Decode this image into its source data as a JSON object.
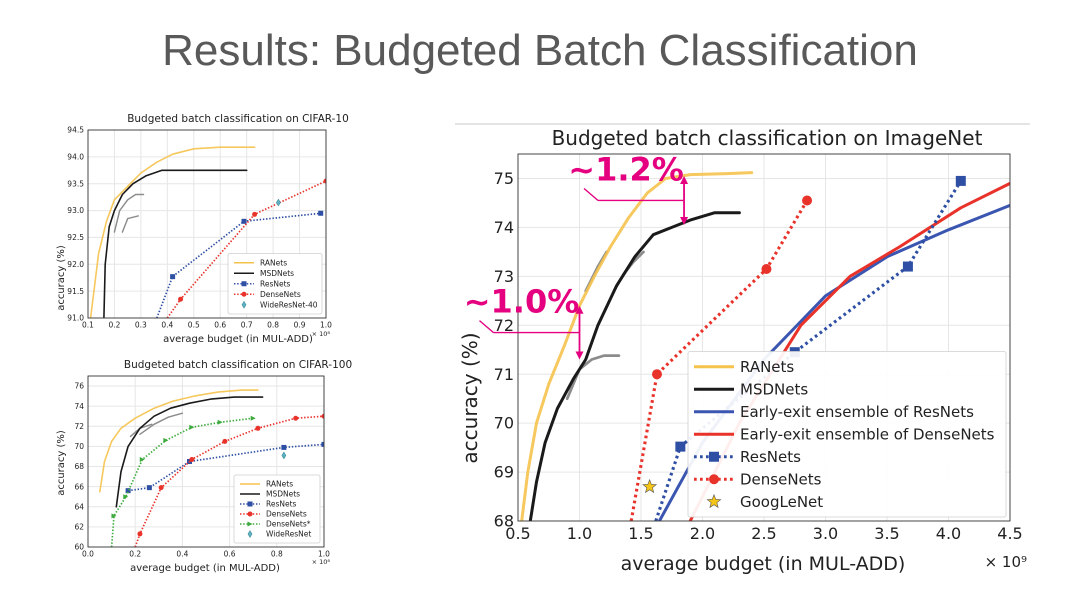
{
  "slide": {
    "title": "Results: Budgeted Batch Classification"
  },
  "chart_data": [
    {
      "id": "cifar10",
      "type": "line",
      "title": "Budgeted batch classification on CIFAR-10",
      "xlabel": "average budget (in MUL-ADD)",
      "ylabel": "accuracy (%)",
      "x_multiplier": "× 10⁸",
      "xlim": [
        0.1,
        1.0
      ],
      "ylim": [
        91.0,
        94.5
      ],
      "xticks": [
        "0.1",
        "0.2",
        "0.3",
        "0.4",
        "0.5",
        "0.6",
        "0.7",
        "0.8",
        "0.9",
        "1.0"
      ],
      "yticks": [
        "91.0",
        "91.5",
        "92.0",
        "92.5",
        "93.0",
        "93.5",
        "94.0",
        "94.5"
      ],
      "legend_position": "bottom-right",
      "legend": [
        "RANets",
        "MSDNets",
        "ResNets",
        "DenseNets",
        "WideResNet-40"
      ],
      "series": [
        {
          "name": "RANets",
          "color": "#F5C24C",
          "style": "solid",
          "x": [
            0.11,
            0.14,
            0.17,
            0.2,
            0.24,
            0.3,
            0.36,
            0.42,
            0.5,
            0.6,
            0.73
          ],
          "y": [
            91.0,
            92.2,
            92.8,
            93.2,
            93.4,
            93.7,
            93.9,
            94.05,
            94.15,
            94.18,
            94.18
          ]
        },
        {
          "name": "MSDNets",
          "color": "#1a1a1a",
          "style": "solid",
          "x": [
            0.16,
            0.165,
            0.18,
            0.2,
            0.23,
            0.27,
            0.32,
            0.38,
            0.45,
            0.55,
            0.7
          ],
          "y": [
            91.0,
            92.0,
            92.7,
            93.0,
            93.3,
            93.5,
            93.65,
            93.75,
            93.75,
            93.75,
            93.75
          ]
        },
        {
          "name": "ResNets",
          "color": "#2E4FA3",
          "style": "dotted",
          "marker": "square",
          "x": [
            0.36,
            0.42,
            0.69,
            0.98
          ],
          "y": [
            91.0,
            91.77,
            92.8,
            92.95
          ]
        },
        {
          "name": "DenseNets",
          "color": "#E8322A",
          "style": "dotted",
          "marker": "circle",
          "x": [
            0.4,
            0.45,
            0.73,
            1.0
          ],
          "y": [
            91.0,
            91.35,
            92.93,
            93.55
          ]
        },
        {
          "name": "WideResNet-40",
          "color": "#5FB4C4",
          "style": "none",
          "marker": "diamond",
          "x": [
            0.82
          ],
          "y": [
            93.15
          ]
        }
      ],
      "extra_gray_curves": [
        {
          "x": [
            0.2,
            0.22,
            0.25,
            0.28,
            0.31
          ],
          "y": [
            92.6,
            93.0,
            93.2,
            93.3,
            93.3
          ]
        },
        {
          "x": [
            0.23,
            0.25,
            0.29
          ],
          "y": [
            92.6,
            92.85,
            92.9
          ]
        }
      ]
    },
    {
      "id": "cifar100",
      "type": "line",
      "title": "Budgeted batch classification on CIFAR-100",
      "xlabel": "average budget (in MUL-ADD)",
      "ylabel": "accuracy (%)",
      "x_multiplier": "× 10⁸",
      "xlim": [
        0.0,
        1.0
      ],
      "ylim": [
        60,
        77
      ],
      "xticks": [
        "0.0",
        "0.2",
        "0.4",
        "0.6",
        "0.8",
        "1.0"
      ],
      "yticks": [
        "60",
        "62",
        "64",
        "66",
        "68",
        "70",
        "72",
        "74",
        "76"
      ],
      "legend_position": "bottom-right",
      "legend": [
        "RANets",
        "MSDNets",
        "ResNets",
        "DenseNets",
        "DenseNets*",
        "WideResNet"
      ],
      "series": [
        {
          "name": "RANets",
          "color": "#F5C24C",
          "style": "solid",
          "x": [
            0.05,
            0.07,
            0.1,
            0.14,
            0.2,
            0.28,
            0.36,
            0.45,
            0.55,
            0.65,
            0.72
          ],
          "y": [
            65.5,
            68.5,
            70.5,
            71.8,
            72.8,
            73.8,
            74.5,
            75.0,
            75.4,
            75.6,
            75.6
          ]
        },
        {
          "name": "MSDNets",
          "color": "#1a1a1a",
          "style": "solid",
          "x": [
            0.12,
            0.14,
            0.17,
            0.22,
            0.28,
            0.35,
            0.43,
            0.52,
            0.62,
            0.74
          ],
          "y": [
            64.0,
            67.5,
            70.0,
            71.8,
            73.0,
            73.8,
            74.3,
            74.7,
            74.9,
            74.9
          ]
        },
        {
          "name": "ResNets",
          "color": "#2E4FA3",
          "style": "dotted",
          "marker": "square",
          "x": [
            0.17,
            0.26,
            0.43,
            0.83,
            1.0
          ],
          "y": [
            65.6,
            65.9,
            68.5,
            69.9,
            70.2
          ]
        },
        {
          "name": "DenseNets",
          "color": "#E8322A",
          "style": "dotted",
          "marker": "circle",
          "x": [
            0.2,
            0.22,
            0.31,
            0.44,
            0.58,
            0.72,
            0.88,
            1.0
          ],
          "y": [
            60.0,
            61.3,
            65.9,
            68.7,
            70.5,
            71.8,
            72.8,
            73.0
          ]
        },
        {
          "name": "DenseNets*",
          "color": "#3DAA3D",
          "style": "dotted",
          "marker": "triangle",
          "x": [
            0.1,
            0.11,
            0.16,
            0.23,
            0.33,
            0.44,
            0.56,
            0.7
          ],
          "y": [
            60.0,
            63.1,
            65.0,
            68.7,
            70.6,
            71.9,
            72.4,
            72.8
          ]
        },
        {
          "name": "WideResNet",
          "color": "#5FB4C4",
          "style": "none",
          "marker": "diamond",
          "x": [
            0.83
          ],
          "y": [
            69.1
          ]
        }
      ],
      "extra_gray_curves": [
        {
          "x": [
            0.22,
            0.28,
            0.34,
            0.4
          ],
          "y": [
            71.2,
            72.2,
            72.9,
            73.3
          ]
        },
        {
          "x": [
            0.18,
            0.22,
            0.27
          ],
          "y": [
            71.0,
            71.8,
            72.2
          ]
        }
      ]
    },
    {
      "id": "imagenet",
      "type": "line",
      "title": "Budgeted batch classification on ImageNet",
      "xlabel": "average budget (in MUL-ADD)",
      "ylabel": "accuracy (%)",
      "x_multiplier": "× 10⁹",
      "xlim": [
        0.5,
        4.5
      ],
      "ylim": [
        68,
        75.5
      ],
      "xticks": [
        "0.5",
        "1.0",
        "1.5",
        "2.0",
        "2.5",
        "3.0",
        "3.5",
        "4.0",
        "4.5"
      ],
      "yticks": [
        "68",
        "69",
        "70",
        "71",
        "72",
        "73",
        "74",
        "75"
      ],
      "legend_position": "bottom-right",
      "legend": [
        "RANets",
        "MSDNets",
        "Early-exit ensemble of ResNets",
        "Early-exit ensemble of DenseNets",
        "ResNets",
        "DenseNets",
        "GoogLeNet"
      ],
      "series": [
        {
          "name": "RANets",
          "color": "#F5C24C",
          "style": "solid",
          "x": [
            0.53,
            0.58,
            0.65,
            0.75,
            0.88,
            1.0,
            1.12,
            1.25,
            1.4,
            1.55,
            1.7,
            1.9,
            2.2,
            2.4
          ],
          "y": [
            68.0,
            69.0,
            70.0,
            70.8,
            71.6,
            72.4,
            73.0,
            73.6,
            74.2,
            74.7,
            75.0,
            75.08,
            75.1,
            75.12
          ]
        },
        {
          "name": "MSDNets",
          "color": "#1a1a1a",
          "style": "solid",
          "x": [
            0.6,
            0.65,
            0.72,
            0.82,
            0.95,
            1.05,
            1.15,
            1.3,
            1.45,
            1.6,
            1.75,
            1.9,
            2.1,
            2.3
          ],
          "y": [
            68.0,
            68.8,
            69.6,
            70.3,
            70.9,
            71.3,
            72.0,
            72.8,
            73.4,
            73.85,
            74.0,
            74.15,
            74.3,
            74.3
          ]
        },
        {
          "name": "Early-exit ensemble of ResNets",
          "color": "#3A56B0",
          "style": "solid",
          "x": [
            1.65,
            2.0,
            2.5,
            3.0,
            3.5,
            4.0,
            4.5
          ],
          "y": [
            68.0,
            69.6,
            71.3,
            72.6,
            73.4,
            73.95,
            74.45
          ]
        },
        {
          "name": "Early-exit ensemble of DenseNets",
          "color": "#E8322A",
          "style": "solid",
          "x": [
            1.9,
            2.3,
            2.8,
            3.2,
            3.6,
            4.1,
            4.5
          ],
          "y": [
            68.0,
            70.0,
            72.0,
            73.0,
            73.6,
            74.4,
            74.9
          ]
        },
        {
          "name": "ResNets",
          "color": "#2E4FA3",
          "style": "dotted",
          "marker": "square",
          "x": [
            1.62,
            1.82,
            2.75,
            3.67,
            4.1
          ],
          "y": [
            68.0,
            69.52,
            71.45,
            73.2,
            74.95
          ]
        },
        {
          "name": "DenseNets",
          "color": "#E8322A",
          "style": "dotted",
          "marker": "circle",
          "x": [
            1.42,
            1.63,
            2.52,
            2.85
          ],
          "y": [
            68.0,
            71.0,
            73.15,
            74.55
          ]
        },
        {
          "name": "GoogLeNet",
          "color": "#F5C518",
          "style": "none",
          "marker": "star",
          "x": [
            1.57
          ],
          "y": [
            68.7
          ]
        }
      ],
      "extra_gray_curves": [
        {
          "x": [
            0.9,
            1.0,
            1.1,
            1.2,
            1.32
          ],
          "y": [
            70.5,
            71.1,
            71.3,
            71.38,
            71.38
          ]
        },
        {
          "x": [
            1.28,
            1.36,
            1.44,
            1.52
          ],
          "y": [
            72.7,
            73.05,
            73.3,
            73.5
          ]
        },
        {
          "x": [
            1.05,
            1.15,
            1.22
          ],
          "y": [
            72.7,
            73.2,
            73.5
          ]
        }
      ],
      "annotations": [
        {
          "text": "~1.2%",
          "color": "#E4007F",
          "x_from": 1.85,
          "y_from": 74.05,
          "y_to": 75.05
        },
        {
          "text": "~1.0%",
          "color": "#E4007F",
          "x_from": 1.0,
          "y_from": 71.3,
          "y_to": 72.4
        }
      ]
    }
  ]
}
